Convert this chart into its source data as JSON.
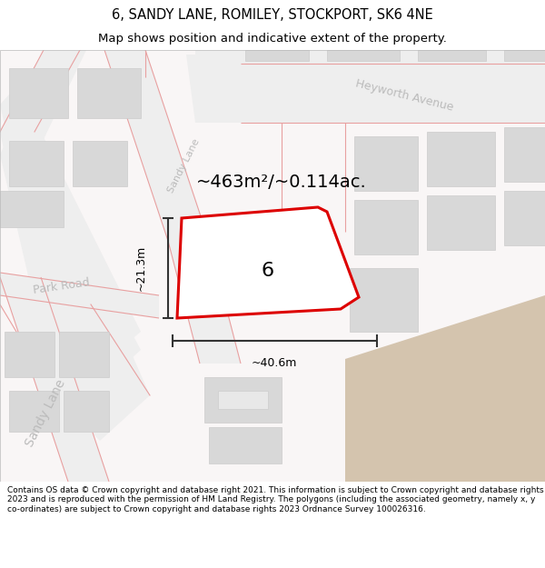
{
  "title": "6, SANDY LANE, ROMILEY, STOCKPORT, SK6 4NE",
  "subtitle": "Map shows position and indicative extent of the property.",
  "footer": "Contains OS data © Crown copyright and database right 2021. This information is subject to Crown copyright and database rights 2023 and is reproduced with the permission of HM Land Registry. The polygons (including the associated geometry, namely x, y co-ordinates) are subject to Crown copyright and database rights 2023 Ordnance Survey 100026316.",
  "area_label": "~463m²/~0.114ac.",
  "width_label": "~40.6m",
  "height_label": "~21.3m",
  "number_label": "6",
  "heyworth_avenue": "Heyworth Avenue",
  "park_road": "Park Road",
  "sandy_lane_upper": "Sandy Lane",
  "sandy_lane_lower": "Sandy Lane",
  "map_bg": "#f9f6f6",
  "road_fill": "#eeeeee",
  "road_stroke": "#e8a0a0",
  "building_fill": "#d8d8d8",
  "building_stroke": "#cccccc",
  "red_outline": "#dd0000",
  "dim_color": "#333333",
  "street_label_color": "#bbbbbb",
  "tan_fill": "#d4c4ae",
  "white": "#ffffff",
  "title_size": 10.5,
  "subtitle_size": 9.5,
  "footer_size": 6.5
}
